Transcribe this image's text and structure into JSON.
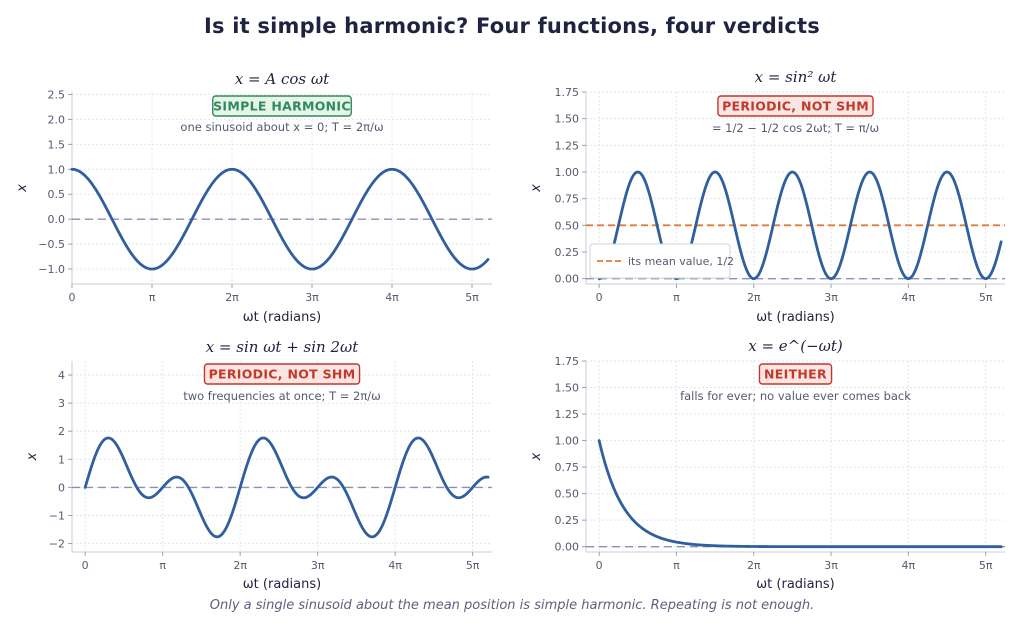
{
  "title": "Is it simple harmonic? Four functions, four verdicts",
  "footer": "Only a single sinusoid about the mean position is simple harmonic. Repeating is not enough.",
  "colors": {
    "curve": "#2f5f9e",
    "baseline": "#8c90b0",
    "mean_line": "#e07b39",
    "grid": "#e3e5ee",
    "badge_green_text": "#2e8b57",
    "badge_green_fill": "#e6f4ea",
    "badge_red_text": "#c0392b",
    "badge_red_fill": "#fbe5e2"
  },
  "chart_data": [
    {
      "type": "line",
      "title": "x = A cos ωt",
      "function": "cos",
      "xlabel": "ωt  (radians)",
      "ylabel": "x",
      "xlim": [
        0,
        5.25
      ],
      "xunit": "pi",
      "x_ticks": [
        0,
        1,
        2,
        3,
        4,
        5
      ],
      "x_tick_labels": [
        "0",
        "π",
        "2π",
        "3π",
        "4π",
        "5π"
      ],
      "ylim": [
        -1.3,
        2.55
      ],
      "y_ticks": [
        -1.0,
        -0.5,
        0.0,
        0.5,
        1.0,
        1.5,
        2.0,
        2.5
      ],
      "y_tick_labels": [
        "−1.0",
        "−0.5",
        "0.0",
        "0.5",
        "1.0",
        "1.5",
        "2.0",
        "2.5"
      ],
      "reference_lines": [
        {
          "y": 0,
          "style": "baseline"
        }
      ],
      "badge": {
        "text": "SIMPLE HARMONIC",
        "tone": "green"
      },
      "annotation": "one sinusoid about x = 0;   T = 2π/ω",
      "legend": null,
      "grid": true
    },
    {
      "type": "line",
      "title": "x = sin² ωt",
      "function": "sin2",
      "xlabel": "ωt  (radians)",
      "ylabel": "x",
      "xlim": [
        -0.17,
        5.25
      ],
      "xunit": "pi",
      "x_ticks": [
        0,
        1,
        2,
        3,
        4,
        5
      ],
      "x_tick_labels": [
        "0",
        "π",
        "2π",
        "3π",
        "4π",
        "5π"
      ],
      "ylim": [
        -0.05,
        1.75
      ],
      "y_ticks": [
        0.0,
        0.25,
        0.5,
        0.75,
        1.0,
        1.25,
        1.5,
        1.75
      ],
      "y_tick_labels": [
        "0.00",
        "0.25",
        "0.50",
        "0.75",
        "1.00",
        "1.25",
        "1.50",
        "1.75"
      ],
      "reference_lines": [
        {
          "y": 0,
          "style": "baseline"
        },
        {
          "y": 0.5,
          "style": "mean"
        }
      ],
      "badge": {
        "text": "PERIODIC, NOT SHM",
        "tone": "red"
      },
      "annotation": "= 1/2 − 1/2 cos 2ωt;   T = π/ω",
      "legend": {
        "label": "its mean value, 1/2",
        "position": "lower-left"
      },
      "grid": true
    },
    {
      "type": "line",
      "title": "x = sin ωt + sin 2ωt",
      "function": "sum",
      "xlabel": "ωt  (radians)",
      "ylabel": "x",
      "xlim": [
        -0.17,
        5.25
      ],
      "xunit": "pi",
      "x_ticks": [
        0,
        1,
        2,
        3,
        4,
        5
      ],
      "x_tick_labels": [
        "0",
        "π",
        "2π",
        "3π",
        "4π",
        "5π"
      ],
      "ylim": [
        -2.3,
        4.5
      ],
      "y_ticks": [
        -2,
        -1,
        0,
        1,
        2,
        3,
        4
      ],
      "y_tick_labels": [
        "−2",
        "−1",
        "0",
        "1",
        "2",
        "3",
        "4"
      ],
      "reference_lines": [
        {
          "y": 0,
          "style": "baseline"
        }
      ],
      "badge": {
        "text": "PERIODIC, NOT SHM",
        "tone": "red"
      },
      "annotation": "two frequencies at once;   T = 2π/ω",
      "legend": null,
      "grid": true
    },
    {
      "type": "line",
      "title": "x = e^(−ωt)",
      "function": "exp",
      "xlabel": "ωt  (radians)",
      "ylabel": "x",
      "xlim": [
        -0.17,
        5.25
      ],
      "xunit": "pi",
      "x_ticks": [
        0,
        1,
        2,
        3,
        4,
        5
      ],
      "x_tick_labels": [
        "0",
        "π",
        "2π",
        "3π",
        "4π",
        "5π"
      ],
      "ylim": [
        -0.05,
        1.75
      ],
      "y_ticks": [
        0.0,
        0.25,
        0.5,
        0.75,
        1.0,
        1.25,
        1.5,
        1.75
      ],
      "y_tick_labels": [
        "0.00",
        "0.25",
        "0.50",
        "0.75",
        "1.00",
        "1.25",
        "1.50",
        "1.75"
      ],
      "reference_lines": [
        {
          "y": 0,
          "style": "baseline"
        }
      ],
      "badge": {
        "text": "NEITHER",
        "tone": "red"
      },
      "annotation": "falls for ever; no value ever comes back",
      "legend": null,
      "grid": true
    }
  ]
}
